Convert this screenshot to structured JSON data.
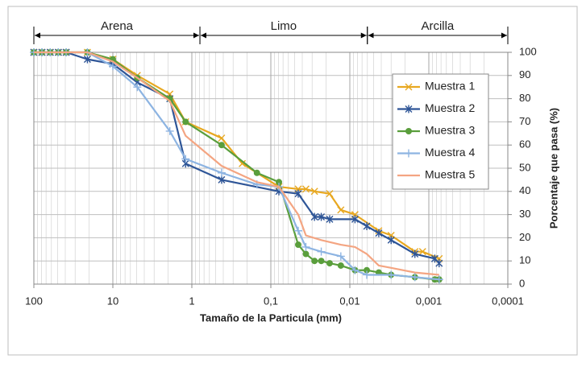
{
  "chart_data": {
    "type": "line",
    "x_label": "Tamaño de la Particula (mm)",
    "y_label": "Porcentaje que pasa (%)",
    "x_log": true,
    "x_reversed": true,
    "y_axis_side": "right",
    "grid": true,
    "legend": "upper right",
    "xlim": [
      100,
      0.0001
    ],
    "xticks": [
      100,
      10,
      1,
      {
        "value": 0.1,
        "label": "0,1"
      },
      {
        "value": 0.01,
        "label": "0,01"
      },
      {
        "value": 0.001,
        "label": "0,001"
      },
      {
        "value": 0.0001,
        "label": "0,0001"
      }
    ],
    "ylim": [
      0,
      100
    ],
    "yticks": [
      0,
      10,
      20,
      30,
      40,
      50,
      60,
      70,
      80,
      90,
      100
    ],
    "regions": [
      {
        "label": "Arena",
        "from": 100,
        "to": 0.79
      },
      {
        "label": "Limo",
        "from": 0.79,
        "to": 0.006
      },
      {
        "label": "Arcilla",
        "from": 0.006,
        "to": 0.0001
      }
    ],
    "series": [
      {
        "name": "Muestra 1",
        "color": "#e8a820",
        "marker": "x",
        "x": [
          100,
          79,
          62,
          49,
          39,
          21,
          10,
          4.9,
          1.9,
          1.2,
          0.42,
          0.23,
          0.079,
          0.045,
          0.036,
          0.028,
          0.018,
          0.013,
          0.0086,
          0.0043,
          0.003,
          0.0015,
          0.0012,
          0.00074
        ],
        "values": [
          100,
          100,
          100,
          100,
          100,
          100,
          97,
          90,
          82,
          70,
          63,
          52,
          42,
          41,
          41,
          40,
          39,
          32,
          30,
          23,
          21,
          14,
          14,
          11
        ]
      },
      {
        "name": "Muestra 2",
        "color": "#2e5597",
        "marker": "star",
        "x": [
          100,
          79,
          62,
          49,
          39,
          21,
          10,
          4.9,
          1.9,
          1.2,
          0.42,
          0.079,
          0.045,
          0.028,
          0.023,
          0.018,
          0.0086,
          0.0061,
          0.0043,
          0.003,
          0.0015,
          0.00084,
          0.00074
        ],
        "values": [
          100,
          100,
          100,
          100,
          100,
          97,
          95,
          87,
          80,
          52,
          45,
          40,
          39,
          29,
          29,
          28,
          28,
          25,
          22,
          19,
          13,
          11,
          9
        ]
      },
      {
        "name": "Muestra 3",
        "color": "#5a9e3c",
        "marker": "circle",
        "x": [
          100,
          79,
          62,
          49,
          39,
          21,
          10,
          4.9,
          1.9,
          1.2,
          0.42,
          0.15,
          0.079,
          0.045,
          0.036,
          0.028,
          0.023,
          0.018,
          0.013,
          0.0086,
          0.0061,
          0.0043,
          0.003,
          0.0015,
          0.00084,
          0.00074
        ],
        "values": [
          100,
          100,
          100,
          100,
          100,
          100,
          97,
          89,
          80,
          70,
          60,
          48,
          44,
          17,
          13,
          10,
          10,
          9,
          8,
          6,
          6,
          5,
          4,
          3,
          2,
          2
        ]
      },
      {
        "name": "Muestra 4",
        "color": "#8db4e2",
        "marker": "plus",
        "x": [
          100,
          79,
          62,
          49,
          39,
          21,
          10,
          4.9,
          1.9,
          1.2,
          0.42,
          0.15,
          0.079,
          0.045,
          0.036,
          0.023,
          0.013,
          0.0086,
          0.0061,
          0.003,
          0.0015,
          0.00074
        ],
        "values": [
          100,
          100,
          100,
          100,
          100,
          100,
          94,
          85,
          66,
          54,
          48,
          43,
          42,
          23,
          16,
          14,
          12,
          6,
          4,
          4,
          3,
          2
        ]
      },
      {
        "name": "Muestra 5",
        "color": "#f4a582",
        "marker": "none",
        "x": [
          100,
          79,
          62,
          49,
          39,
          21,
          10,
          4.9,
          1.9,
          1.2,
          0.42,
          0.15,
          0.079,
          0.045,
          0.036,
          0.023,
          0.013,
          0.0086,
          0.0061,
          0.0043,
          0.003,
          0.0015,
          0.00074
        ],
        "values": [
          100,
          100,
          100,
          100,
          100,
          100,
          96,
          89,
          79,
          64,
          51,
          44,
          42,
          30,
          21,
          19,
          17,
          16,
          13,
          8,
          7,
          5,
          4
        ]
      }
    ]
  }
}
